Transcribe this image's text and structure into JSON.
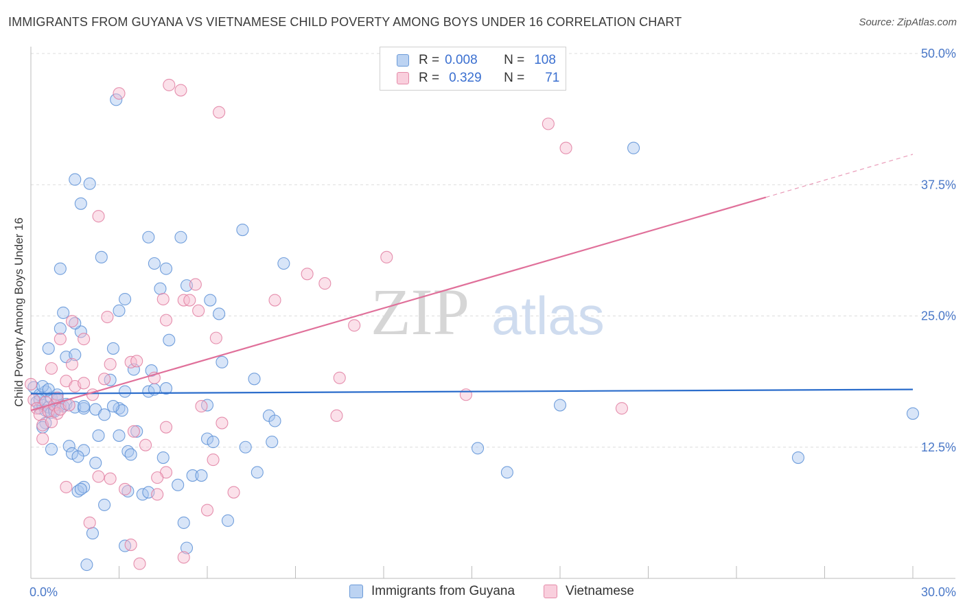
{
  "title": "IMMIGRANTS FROM GUYANA VS VIETNAMESE CHILD POVERTY AMONG BOYS UNDER 16 CORRELATION CHART",
  "source": "Source: ZipAtlas.com",
  "watermark": {
    "zip": "ZIP",
    "atlas": "atlas"
  },
  "legend": {
    "rows": [
      {
        "r_label": "R =",
        "r_value": "0.008",
        "n_label": "N =",
        "n_value": "108"
      },
      {
        "r_label": "R =",
        "r_value": "0.329",
        "n_label": "N =",
        "n_value": "71"
      }
    ]
  },
  "bottom_legend": {
    "series1": "Immigrants from Guyana",
    "series2": "Vietnamese"
  },
  "colors": {
    "blue_fill": "#a9c6ef",
    "blue_stroke": "#5b8fd6",
    "blue_line": "#2a6ccb",
    "pink_fill": "#f6bcd0",
    "pink_stroke": "#e07ca0",
    "pink_line": "#e0709a",
    "tick_text": "#4a78c8",
    "grid": "#dcdcdc"
  },
  "chart_data": {
    "type": "scatter",
    "title": "IMMIGRANTS FROM GUYANA VS VIETNAMESE CHILD POVERTY AMONG BOYS UNDER 16 CORRELATION CHART",
    "xlabel": "",
    "ylabel": "Child Poverty Among Boys Under 16",
    "xlim": [
      0,
      30
    ],
    "ylim": [
      0,
      50
    ],
    "x_tick_labels": [
      "0.0%",
      "30.0%"
    ],
    "y_tick_labels": [
      "12.5%",
      "25.0%",
      "37.5%",
      "50.0%"
    ],
    "y_tick_values": [
      12.5,
      25,
      37.5,
      50
    ],
    "series": [
      {
        "name": "Immigrants from Guyana",
        "R": 0.008,
        "N": 108,
        "trend": {
          "x0": 0,
          "y0": 17.6,
          "x1": 30,
          "y1": 18.0
        },
        "points": [
          [
            0.1,
            18.2
          ],
          [
            0.2,
            16.8
          ],
          [
            0.3,
            17.5
          ],
          [
            0.3,
            16.2
          ],
          [
            0.4,
            16.5
          ],
          [
            0.5,
            17.8
          ],
          [
            0.5,
            16.0
          ],
          [
            0.6,
            16.3
          ],
          [
            0.7,
            17.2
          ],
          [
            0.7,
            15.8
          ],
          [
            0.8,
            16.1
          ],
          [
            0.9,
            17.0
          ],
          [
            1.0,
            16.5
          ],
          [
            0.4,
            18.3
          ],
          [
            0.6,
            18.0
          ],
          [
            0.9,
            17.5
          ],
          [
            1.1,
            16.4
          ],
          [
            0.3,
            17.0
          ],
          [
            0.8,
            15.9
          ],
          [
            1.2,
            16.6
          ],
          [
            1.5,
            16.3
          ],
          [
            1.8,
            16.2
          ],
          [
            2.2,
            16.1
          ],
          [
            2.5,
            15.6
          ],
          [
            3.0,
            16.2
          ],
          [
            3.1,
            16.0
          ],
          [
            2.7,
            18.9
          ],
          [
            3.2,
            17.8
          ],
          [
            4.0,
            17.8
          ],
          [
            4.2,
            18.0
          ],
          [
            4.6,
            18.1
          ],
          [
            0.5,
            14.8
          ],
          [
            0.4,
            14.4
          ],
          [
            1.3,
            12.6
          ],
          [
            0.7,
            12.3
          ],
          [
            1.4,
            11.9
          ],
          [
            1.8,
            12.2
          ],
          [
            1.6,
            11.6
          ],
          [
            2.2,
            11.0
          ],
          [
            3.3,
            12.1
          ],
          [
            3.4,
            11.8
          ],
          [
            3.0,
            13.6
          ],
          [
            2.3,
            13.6
          ],
          [
            3.6,
            14.0
          ],
          [
            1.6,
            8.3
          ],
          [
            1.8,
            8.7
          ],
          [
            1.7,
            8.5
          ],
          [
            2.5,
            7.0
          ],
          [
            3.3,
            8.3
          ],
          [
            3.8,
            8.0
          ],
          [
            4.0,
            8.2
          ],
          [
            4.5,
            11.5
          ],
          [
            5.0,
            8.9
          ],
          [
            5.5,
            9.8
          ],
          [
            5.8,
            9.8
          ],
          [
            6.0,
            13.3
          ],
          [
            6.2,
            13.0
          ],
          [
            6.0,
            16.5
          ],
          [
            7.3,
            12.5
          ],
          [
            7.7,
            10.1
          ],
          [
            8.1,
            15.5
          ],
          [
            8.3,
            15.0
          ],
          [
            8.2,
            13.0
          ],
          [
            6.5,
            20.6
          ],
          [
            7.6,
            19.0
          ],
          [
            4.1,
            19.8
          ],
          [
            3.5,
            19.9
          ],
          [
            2.8,
            21.9
          ],
          [
            1.2,
            21.1
          ],
          [
            0.6,
            21.9
          ],
          [
            1.5,
            21.3
          ],
          [
            1.7,
            23.5
          ],
          [
            1.5,
            24.3
          ],
          [
            1.1,
            25.3
          ],
          [
            1.0,
            23.8
          ],
          [
            3.0,
            25.5
          ],
          [
            3.2,
            26.6
          ],
          [
            4.7,
            22.7
          ],
          [
            4.4,
            27.6
          ],
          [
            5.3,
            27.9
          ],
          [
            6.1,
            26.5
          ],
          [
            6.4,
            25.2
          ],
          [
            1.0,
            29.5
          ],
          [
            2.4,
            30.6
          ],
          [
            4.2,
            30.0
          ],
          [
            4.6,
            29.5
          ],
          [
            5.1,
            32.5
          ],
          [
            4.0,
            32.5
          ],
          [
            7.2,
            33.2
          ],
          [
            8.6,
            30.0
          ],
          [
            1.7,
            35.7
          ],
          [
            1.5,
            38.0
          ],
          [
            2.0,
            37.6
          ],
          [
            2.9,
            45.6
          ],
          [
            20.5,
            41.0
          ],
          [
            18.0,
            16.5
          ],
          [
            30.0,
            15.7
          ],
          [
            15.2,
            12.4
          ],
          [
            16.2,
            10.1
          ],
          [
            26.1,
            11.5
          ],
          [
            2.1,
            4.3
          ],
          [
            3.2,
            3.1
          ],
          [
            5.3,
            2.9
          ],
          [
            1.9,
            1.3
          ],
          [
            6.7,
            5.5
          ],
          [
            5.2,
            5.3
          ],
          [
            1.8,
            16.4
          ],
          [
            2.8,
            16.4
          ]
        ]
      },
      {
        "name": "Vietnamese",
        "R": 0.329,
        "N": 71,
        "trend": {
          "x0": 0,
          "y0": 16.0,
          "x1": 25.0,
          "y1": 36.3,
          "dash_x1": 30,
          "dash_y1": 40.4
        },
        "points": [
          [
            0.0,
            18.5
          ],
          [
            0.1,
            17.0
          ],
          [
            0.2,
            16.2
          ],
          [
            0.3,
            15.6
          ],
          [
            0.5,
            16.8
          ],
          [
            0.6,
            15.9
          ],
          [
            0.8,
            16.5
          ],
          [
            0.9,
            15.7
          ],
          [
            1.0,
            16.1
          ],
          [
            0.4,
            14.6
          ],
          [
            0.7,
            14.9
          ],
          [
            0.4,
            13.3
          ],
          [
            0.9,
            17.2
          ],
          [
            1.3,
            16.5
          ],
          [
            1.2,
            18.8
          ],
          [
            1.5,
            18.3
          ],
          [
            1.8,
            18.6
          ],
          [
            2.1,
            17.5
          ],
          [
            1.4,
            20.4
          ],
          [
            0.7,
            20.0
          ],
          [
            1.0,
            22.8
          ],
          [
            1.8,
            22.8
          ],
          [
            1.4,
            24.5
          ],
          [
            2.6,
            24.9
          ],
          [
            2.7,
            20.4
          ],
          [
            3.4,
            20.6
          ],
          [
            3.6,
            20.7
          ],
          [
            4.2,
            19.1
          ],
          [
            4.6,
            24.6
          ],
          [
            4.5,
            26.6
          ],
          [
            5.2,
            26.5
          ],
          [
            5.4,
            26.5
          ],
          [
            5.7,
            25.5
          ],
          [
            6.3,
            22.9
          ],
          [
            5.6,
            28.0
          ],
          [
            8.3,
            26.5
          ],
          [
            9.4,
            29.0
          ],
          [
            10.0,
            28.1
          ],
          [
            12.1,
            30.6
          ],
          [
            11.0,
            24.1
          ],
          [
            10.5,
            19.1
          ],
          [
            10.4,
            15.5
          ],
          [
            14.8,
            17.5
          ],
          [
            20.1,
            16.2
          ],
          [
            4.6,
            14.4
          ],
          [
            3.9,
            12.7
          ],
          [
            3.5,
            14.0
          ],
          [
            6.5,
            14.8
          ],
          [
            6.2,
            11.3
          ],
          [
            5.8,
            16.4
          ],
          [
            1.2,
            8.7
          ],
          [
            2.7,
            9.5
          ],
          [
            2.3,
            9.7
          ],
          [
            3.2,
            8.5
          ],
          [
            4.3,
            8.0
          ],
          [
            4.6,
            10.1
          ],
          [
            4.3,
            9.6
          ],
          [
            6.9,
            8.2
          ],
          [
            6.0,
            6.5
          ],
          [
            3.4,
            3.2
          ],
          [
            3.7,
            1.4
          ],
          [
            5.2,
            2.0
          ],
          [
            2.0,
            5.3
          ],
          [
            2.3,
            34.5
          ],
          [
            3.0,
            46.2
          ],
          [
            4.7,
            47.0
          ],
          [
            5.1,
            46.5
          ],
          [
            6.4,
            44.4
          ],
          [
            17.6,
            43.3
          ],
          [
            18.2,
            41.0
          ],
          [
            2.5,
            19.0
          ]
        ]
      }
    ]
  }
}
